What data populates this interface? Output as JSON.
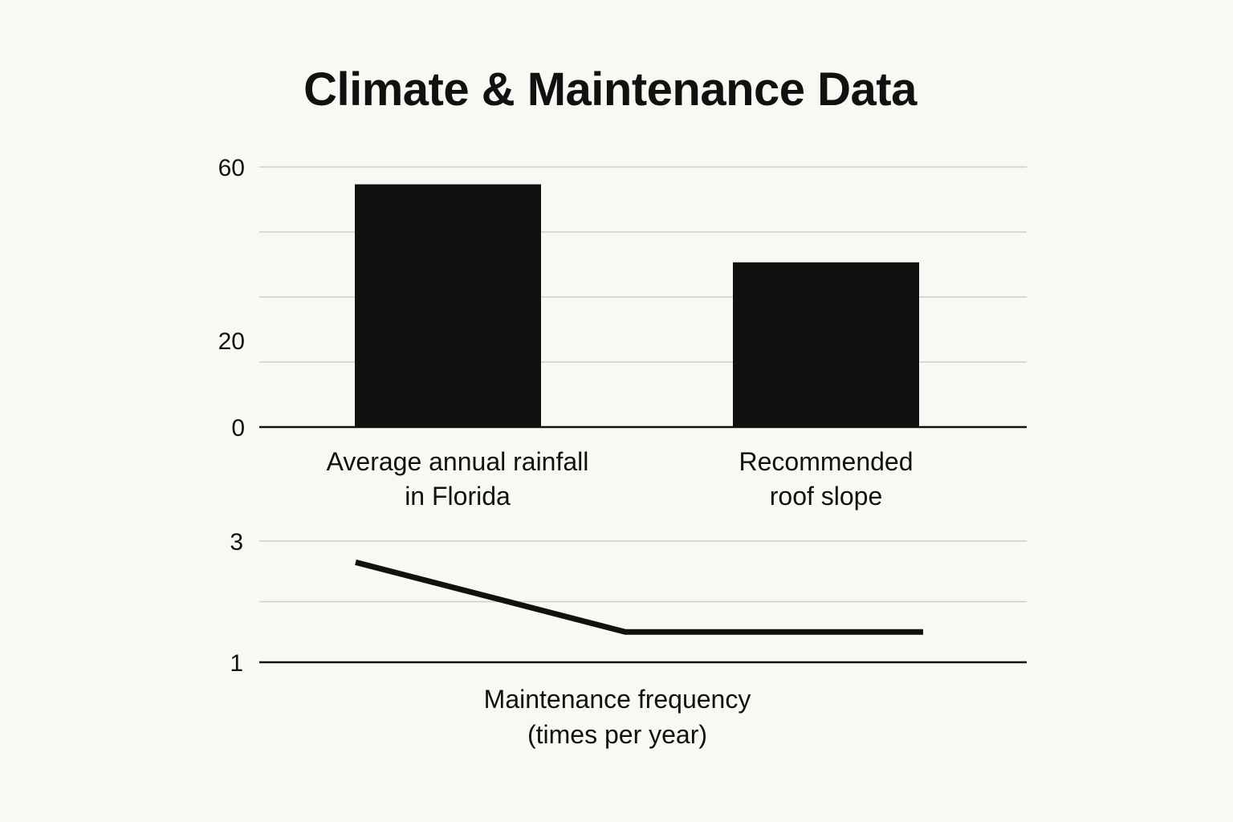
{
  "chart_data": [
    {
      "type": "bar",
      "title": "Climate & Maintenance Data",
      "categories": [
        [
          "Average annual rainfall",
          "in Florida"
        ],
        [
          "Recommended",
          "roof slope"
        ]
      ],
      "values": [
        56,
        38
      ],
      "y_ticks": [
        {
          "value": 0,
          "label": "0"
        },
        {
          "value": 20,
          "label": "20"
        },
        {
          "value": 60,
          "label": "60"
        }
      ],
      "ylim": [
        0,
        60
      ],
      "grid": true,
      "colors": {
        "bar": "#111111",
        "grid": "#cfcdc8",
        "axis": "#111111"
      }
    },
    {
      "type": "line",
      "xlabel": [
        "Maintenance frequency",
        "(times per year)"
      ],
      "values": [
        2.65,
        1.5,
        1.5
      ],
      "y_ticks": [
        {
          "value": 1,
          "label": "1"
        },
        {
          "value": 3,
          "label": "3"
        }
      ],
      "ylim": [
        1,
        3
      ],
      "grid": true,
      "colors": {
        "line": "#111111",
        "grid": "#cfcdc8",
        "axis": "#111111"
      }
    }
  ]
}
